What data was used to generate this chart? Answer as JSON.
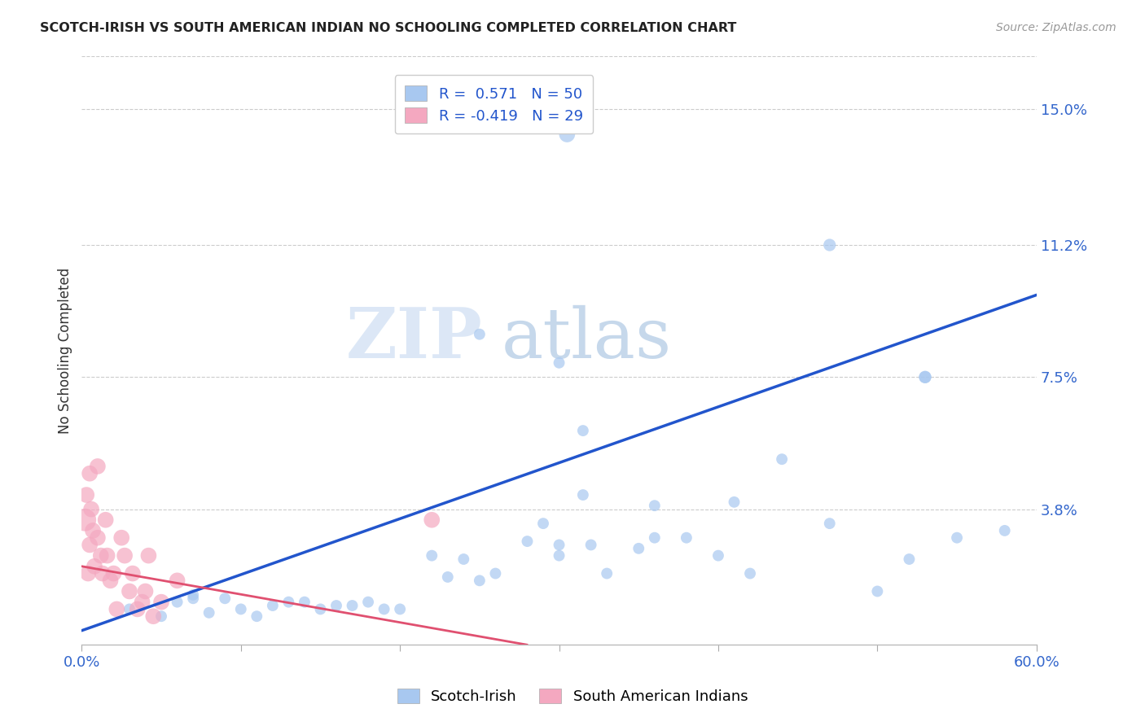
{
  "title": "SCOTCH-IRISH VS SOUTH AMERICAN INDIAN NO SCHOOLING COMPLETED CORRELATION CHART",
  "source": "Source: ZipAtlas.com",
  "ylabel": "No Schooling Completed",
  "xlim": [
    0.0,
    0.6
  ],
  "ylim": [
    0.0,
    0.165
  ],
  "ytick_right_labels": [
    "3.8%",
    "7.5%",
    "11.2%",
    "15.0%"
  ],
  "ytick_right_positions": [
    0.038,
    0.075,
    0.112,
    0.15
  ],
  "legend_r1": "R =  0.571",
  "legend_n1": "N = 50",
  "legend_r2": "R = -0.419",
  "legend_n2": "N = 29",
  "color_blue": "#A8C8F0",
  "color_pink": "#F4A8C0",
  "color_blue_line": "#2255CC",
  "color_pink_line": "#E05070",
  "color_title": "#222222",
  "color_axis_ticks": "#3366CC",
  "watermark_zip": "ZIP",
  "watermark_atlas": "atlas",
  "blue_points_x": [
    0.305,
    0.47,
    0.53,
    0.53,
    0.25,
    0.3,
    0.315,
    0.315,
    0.36,
    0.41,
    0.44,
    0.29,
    0.3,
    0.32,
    0.33,
    0.35,
    0.36,
    0.38,
    0.4,
    0.42,
    0.47,
    0.5,
    0.52,
    0.55,
    0.58,
    0.03,
    0.05,
    0.06,
    0.07,
    0.07,
    0.08,
    0.09,
    0.1,
    0.11,
    0.12,
    0.13,
    0.14,
    0.15,
    0.16,
    0.17,
    0.18,
    0.19,
    0.2,
    0.22,
    0.23,
    0.24,
    0.25,
    0.26,
    0.28,
    0.3
  ],
  "blue_points_y": [
    0.143,
    0.112,
    0.075,
    0.075,
    0.087,
    0.079,
    0.042,
    0.06,
    0.039,
    0.04,
    0.052,
    0.034,
    0.025,
    0.028,
    0.02,
    0.027,
    0.03,
    0.03,
    0.025,
    0.02,
    0.034,
    0.015,
    0.024,
    0.03,
    0.032,
    0.01,
    0.008,
    0.012,
    0.014,
    0.013,
    0.009,
    0.013,
    0.01,
    0.008,
    0.011,
    0.012,
    0.012,
    0.01,
    0.011,
    0.011,
    0.012,
    0.01,
    0.01,
    0.025,
    0.019,
    0.024,
    0.018,
    0.02,
    0.029,
    0.028
  ],
  "blue_sizes": [
    200,
    120,
    120,
    120,
    100,
    100,
    100,
    100,
    100,
    100,
    100,
    100,
    100,
    100,
    100,
    100,
    100,
    100,
    100,
    100,
    100,
    100,
    100,
    100,
    100,
    100,
    100,
    100,
    100,
    100,
    100,
    100,
    100,
    100,
    100,
    100,
    100,
    100,
    100,
    100,
    100,
    100,
    100,
    100,
    100,
    100,
    100,
    100,
    100,
    100
  ],
  "pink_points_x": [
    0.002,
    0.003,
    0.004,
    0.005,
    0.005,
    0.006,
    0.007,
    0.008,
    0.01,
    0.01,
    0.012,
    0.013,
    0.015,
    0.016,
    0.018,
    0.02,
    0.022,
    0.025,
    0.027,
    0.03,
    0.032,
    0.035,
    0.038,
    0.04,
    0.042,
    0.045,
    0.05,
    0.06,
    0.22
  ],
  "pink_points_y": [
    0.035,
    0.042,
    0.02,
    0.048,
    0.028,
    0.038,
    0.032,
    0.022,
    0.05,
    0.03,
    0.025,
    0.02,
    0.035,
    0.025,
    0.018,
    0.02,
    0.01,
    0.03,
    0.025,
    0.015,
    0.02,
    0.01,
    0.012,
    0.015,
    0.025,
    0.008,
    0.012,
    0.018,
    0.035
  ],
  "pink_sizes": [
    400,
    200,
    200,
    200,
    200,
    200,
    200,
    200,
    200,
    200,
    200,
    200,
    200,
    200,
    200,
    200,
    200,
    200,
    200,
    200,
    200,
    200,
    200,
    200,
    200,
    200,
    200,
    200,
    200
  ],
  "blue_line_x": [
    0.0,
    0.6
  ],
  "blue_line_y": [
    0.004,
    0.098
  ],
  "pink_line_x": [
    0.0,
    0.28
  ],
  "pink_line_y": [
    0.022,
    0.0
  ],
  "grid_color": "#CCCCCC",
  "background_color": "#FFFFFF"
}
